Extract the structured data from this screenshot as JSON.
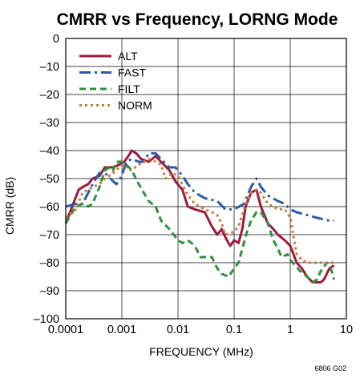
{
  "chart_data": {
    "type": "line",
    "title": "CMRR vs Frequency, LORNG Mode",
    "xlabel": "FREQUENCY (MHz)",
    "ylabel": "CMRR (dB)",
    "xscale": "log",
    "xlim": [
      0.0001,
      10
    ],
    "ylim": [
      -100,
      0
    ],
    "x_ticks": [
      0.0001,
      0.001,
      0.01,
      0.1,
      1,
      10
    ],
    "x_tick_labels": [
      "0.0001",
      "0.001",
      "0.01",
      "0.1",
      "1",
      "10"
    ],
    "y_ticks": [
      0,
      -10,
      -20,
      -30,
      -40,
      -50,
      -60,
      -70,
      -80,
      -90,
      -100
    ],
    "y_tick_labels": [
      "0",
      "–10",
      "–20",
      "–30",
      "–40",
      "–50",
      "–60",
      "–70",
      "–80",
      "–90",
      "–100"
    ],
    "grid": true,
    "legend_position": "top-left",
    "note": "6806 G02",
    "series": [
      {
        "name": "ALT",
        "color": "#9c1a3c",
        "style": "solid",
        "points": [
          [
            0.0001,
            -66
          ],
          [
            0.00013,
            -60
          ],
          [
            0.00017,
            -54
          ],
          [
            0.0002,
            -53
          ],
          [
            0.00025,
            -52
          ],
          [
            0.0003,
            -50
          ],
          [
            0.0004,
            -49
          ],
          [
            0.0005,
            -46
          ],
          [
            0.0007,
            -46
          ],
          [
            0.0009,
            -45
          ],
          [
            0.0011,
            -44
          ],
          [
            0.0013,
            -42
          ],
          [
            0.0015,
            -40
          ],
          [
            0.0018,
            -41
          ],
          [
            0.0022,
            -43
          ],
          [
            0.003,
            -44
          ],
          [
            0.004,
            -42
          ],
          [
            0.005,
            -44
          ],
          [
            0.007,
            -47
          ],
          [
            0.009,
            -51
          ],
          [
            0.012,
            -54
          ],
          [
            0.015,
            -60
          ],
          [
            0.02,
            -61
          ],
          [
            0.03,
            -62
          ],
          [
            0.04,
            -67
          ],
          [
            0.05,
            -70
          ],
          [
            0.06,
            -68
          ],
          [
            0.07,
            -71
          ],
          [
            0.085,
            -74
          ],
          [
            0.1,
            -72
          ],
          [
            0.12,
            -73
          ],
          [
            0.14,
            -68
          ],
          [
            0.16,
            -60
          ],
          [
            0.2,
            -55
          ],
          [
            0.25,
            -54
          ],
          [
            0.3,
            -60
          ],
          [
            0.4,
            -66
          ],
          [
            0.5,
            -68
          ],
          [
            0.6,
            -70
          ],
          [
            0.8,
            -72
          ],
          [
            1.0,
            -74
          ],
          [
            1.3,
            -80
          ],
          [
            1.6,
            -82
          ],
          [
            2.0,
            -85
          ],
          [
            2.5,
            -87
          ],
          [
            3.0,
            -87
          ],
          [
            3.5,
            -87
          ],
          [
            4.0,
            -86
          ],
          [
            5.0,
            -82
          ],
          [
            6.0,
            -81
          ]
        ]
      },
      {
        "name": "FAST",
        "color": "#2e5aa8",
        "style": "dashdot",
        "points": [
          [
            0.0001,
            -60
          ],
          [
            0.00015,
            -59
          ],
          [
            0.0002,
            -59
          ],
          [
            0.0003,
            -52
          ],
          [
            0.0004,
            -48
          ],
          [
            0.0005,
            -48
          ],
          [
            0.0007,
            -51
          ],
          [
            0.0008,
            -52
          ],
          [
            0.001,
            -49
          ],
          [
            0.0012,
            -44
          ],
          [
            0.0015,
            -43
          ],
          [
            0.002,
            -44
          ],
          [
            0.0025,
            -44
          ],
          [
            0.003,
            -41
          ],
          [
            0.004,
            -41
          ],
          [
            0.005,
            -43
          ],
          [
            0.007,
            -46
          ],
          [
            0.009,
            -46
          ],
          [
            0.012,
            -49
          ],
          [
            0.015,
            -52
          ],
          [
            0.02,
            -55
          ],
          [
            0.03,
            -57
          ],
          [
            0.05,
            -58
          ],
          [
            0.07,
            -61
          ],
          [
            0.1,
            -61
          ],
          [
            0.15,
            -59
          ],
          [
            0.2,
            -53
          ],
          [
            0.25,
            -50
          ],
          [
            0.3,
            -53
          ],
          [
            0.4,
            -56
          ],
          [
            0.6,
            -58
          ],
          [
            0.8,
            -59
          ],
          [
            1.0,
            -61
          ],
          [
            1.3,
            -62
          ],
          [
            2.0,
            -63
          ],
          [
            3.0,
            -64
          ],
          [
            5.0,
            -65
          ],
          [
            6.0,
            -65
          ]
        ]
      },
      {
        "name": "FILT",
        "color": "#2f8f3e",
        "style": "dashed",
        "points": [
          [
            0.0001,
            -66
          ],
          [
            0.00015,
            -60
          ],
          [
            0.0002,
            -59
          ],
          [
            0.00025,
            -60
          ],
          [
            0.0003,
            -59
          ],
          [
            0.0004,
            -53
          ],
          [
            0.0005,
            -47
          ],
          [
            0.0006,
            -46
          ],
          [
            0.0007,
            -47
          ],
          [
            0.0008,
            -44
          ],
          [
            0.001,
            -44
          ],
          [
            0.0012,
            -45
          ],
          [
            0.0015,
            -47
          ],
          [
            0.002,
            -52
          ],
          [
            0.003,
            -58
          ],
          [
            0.004,
            -60
          ],
          [
            0.005,
            -65
          ],
          [
            0.007,
            -68
          ],
          [
            0.01,
            -72
          ],
          [
            0.012,
            -73
          ],
          [
            0.015,
            -72
          ],
          [
            0.02,
            -74
          ],
          [
            0.025,
            -78
          ],
          [
            0.03,
            -78
          ],
          [
            0.04,
            -78
          ],
          [
            0.05,
            -82
          ],
          [
            0.06,
            -84
          ],
          [
            0.08,
            -85
          ],
          [
            0.1,
            -82
          ],
          [
            0.12,
            -80
          ],
          [
            0.14,
            -75
          ],
          [
            0.17,
            -69
          ],
          [
            0.2,
            -65
          ],
          [
            0.25,
            -62
          ],
          [
            0.3,
            -62
          ],
          [
            0.4,
            -66
          ],
          [
            0.5,
            -72
          ],
          [
            0.6,
            -75
          ],
          [
            0.7,
            -78
          ],
          [
            0.9,
            -77
          ],
          [
            1.0,
            -79
          ],
          [
            1.5,
            -83
          ],
          [
            2.0,
            -85
          ],
          [
            2.5,
            -87
          ],
          [
            3.0,
            -86
          ],
          [
            3.5,
            -83
          ],
          [
            4.5,
            -80
          ],
          [
            5.5,
            -83
          ],
          [
            6.0,
            -86
          ]
        ]
      },
      {
        "name": "NORM",
        "color": "#c87a3c",
        "style": "dotted",
        "points": [
          [
            0.0001,
            -64
          ],
          [
            0.00015,
            -61
          ],
          [
            0.0002,
            -55
          ],
          [
            0.00025,
            -54
          ],
          [
            0.0003,
            -53
          ],
          [
            0.0004,
            -52
          ],
          [
            0.0005,
            -50
          ],
          [
            0.0007,
            -48
          ],
          [
            0.0009,
            -46
          ],
          [
            0.0011,
            -45
          ],
          [
            0.0013,
            -47
          ],
          [
            0.0015,
            -47
          ],
          [
            0.002,
            -45
          ],
          [
            0.003,
            -43
          ],
          [
            0.004,
            -44
          ],
          [
            0.005,
            -45
          ],
          [
            0.006,
            -50
          ],
          [
            0.008,
            -48
          ],
          [
            0.01,
            -49
          ],
          [
            0.015,
            -56
          ],
          [
            0.02,
            -59
          ],
          [
            0.03,
            -61
          ],
          [
            0.04,
            -62
          ],
          [
            0.05,
            -63
          ],
          [
            0.06,
            -66
          ],
          [
            0.07,
            -70
          ],
          [
            0.1,
            -69
          ],
          [
            0.12,
            -67
          ],
          [
            0.15,
            -61
          ],
          [
            0.2,
            -55
          ],
          [
            0.25,
            -54
          ],
          [
            0.3,
            -55
          ],
          [
            0.4,
            -59
          ],
          [
            0.5,
            -60
          ],
          [
            0.6,
            -61
          ],
          [
            0.8,
            -61
          ],
          [
            1.0,
            -64
          ],
          [
            1.3,
            -77
          ],
          [
            1.6,
            -79
          ],
          [
            2.0,
            -80
          ],
          [
            3.0,
            -80
          ],
          [
            4.0,
            -80
          ],
          [
            5.0,
            -80
          ],
          [
            6.0,
            -80
          ]
        ]
      }
    ]
  }
}
